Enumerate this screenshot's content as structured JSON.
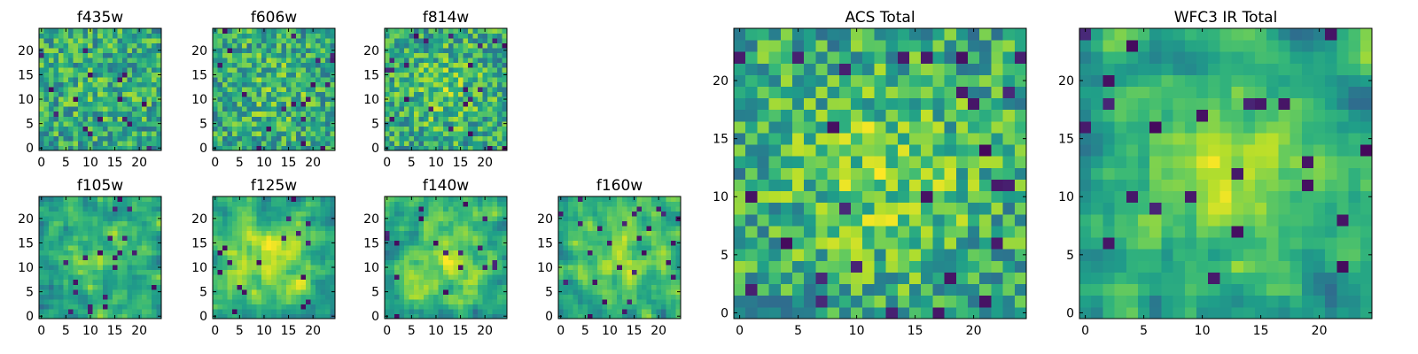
{
  "chart_data": [
    {
      "type": "heatmap",
      "title": "f435w",
      "xlim": [
        0,
        25
      ],
      "ylim": [
        0,
        25
      ],
      "x_ticks": [
        0,
        5,
        10,
        15,
        20
      ],
      "y_ticks": [
        0,
        5,
        10,
        15,
        20
      ],
      "grid": false,
      "seed": 11,
      "smooth": 0,
      "bias": 0.05
    },
    {
      "type": "heatmap",
      "title": "f606w",
      "xlim": [
        0,
        25
      ],
      "ylim": [
        0,
        25
      ],
      "x_ticks": [
        0,
        5,
        10,
        15,
        20
      ],
      "y_ticks": [
        0,
        5,
        10,
        15,
        20
      ],
      "grid": false,
      "seed": 23,
      "smooth": 0,
      "bias": 0.1
    },
    {
      "type": "heatmap",
      "title": "f814w",
      "xlim": [
        0,
        25
      ],
      "ylim": [
        0,
        25
      ],
      "x_ticks": [
        0,
        5,
        10,
        15,
        20
      ],
      "y_ticks": [
        0,
        5,
        10,
        15,
        20
      ],
      "grid": false,
      "seed": 37,
      "smooth": 0,
      "bias": 0.15
    },
    {
      "type": "heatmap",
      "title": "f105w",
      "xlim": [
        0,
        25
      ],
      "ylim": [
        0,
        25
      ],
      "x_ticks": [
        0,
        5,
        10,
        15,
        20
      ],
      "y_ticks": [
        0,
        5,
        10,
        15,
        20
      ],
      "grid": false,
      "seed": 41,
      "smooth": 1,
      "bias": 0.2
    },
    {
      "type": "heatmap",
      "title": "f125w",
      "xlim": [
        0,
        25
      ],
      "ylim": [
        0,
        25
      ],
      "x_ticks": [
        0,
        5,
        10,
        15,
        20
      ],
      "y_ticks": [
        0,
        5,
        10,
        15,
        20
      ],
      "grid": false,
      "seed": 53,
      "smooth": 1,
      "bias": 0.3
    },
    {
      "type": "heatmap",
      "title": "f140w",
      "xlim": [
        0,
        25
      ],
      "ylim": [
        0,
        25
      ],
      "x_ticks": [
        0,
        5,
        10,
        15,
        20
      ],
      "y_ticks": [
        0,
        5,
        10,
        15,
        20
      ],
      "grid": false,
      "seed": 67,
      "smooth": 1,
      "bias": 0.25
    },
    {
      "type": "heatmap",
      "title": "f160w",
      "xlim": [
        0,
        25
      ],
      "ylim": [
        0,
        25
      ],
      "x_ticks": [
        0,
        5,
        10,
        15,
        20
      ],
      "y_ticks": [
        0,
        5,
        10,
        15,
        20
      ],
      "grid": false,
      "seed": 79,
      "smooth": 1,
      "bias": 0.25
    },
    {
      "type": "heatmap",
      "title": "ACS Total",
      "xlim": [
        0,
        25
      ],
      "ylim": [
        0,
        25
      ],
      "x_ticks": [
        0,
        5,
        10,
        15,
        20
      ],
      "y_ticks": [
        0,
        5,
        10,
        15,
        20
      ],
      "grid": false,
      "seed": 97,
      "smooth": 0,
      "bias": 0.2
    },
    {
      "type": "heatmap",
      "title": "WFC3 IR Total",
      "xlim": [
        0,
        25
      ],
      "ylim": [
        0,
        25
      ],
      "x_ticks": [
        0,
        5,
        10,
        15,
        20
      ],
      "y_ticks": [
        0,
        5,
        10,
        15,
        20
      ],
      "grid": false,
      "seed": 113,
      "smooth": 1,
      "bias": 0.3
    }
  ]
}
